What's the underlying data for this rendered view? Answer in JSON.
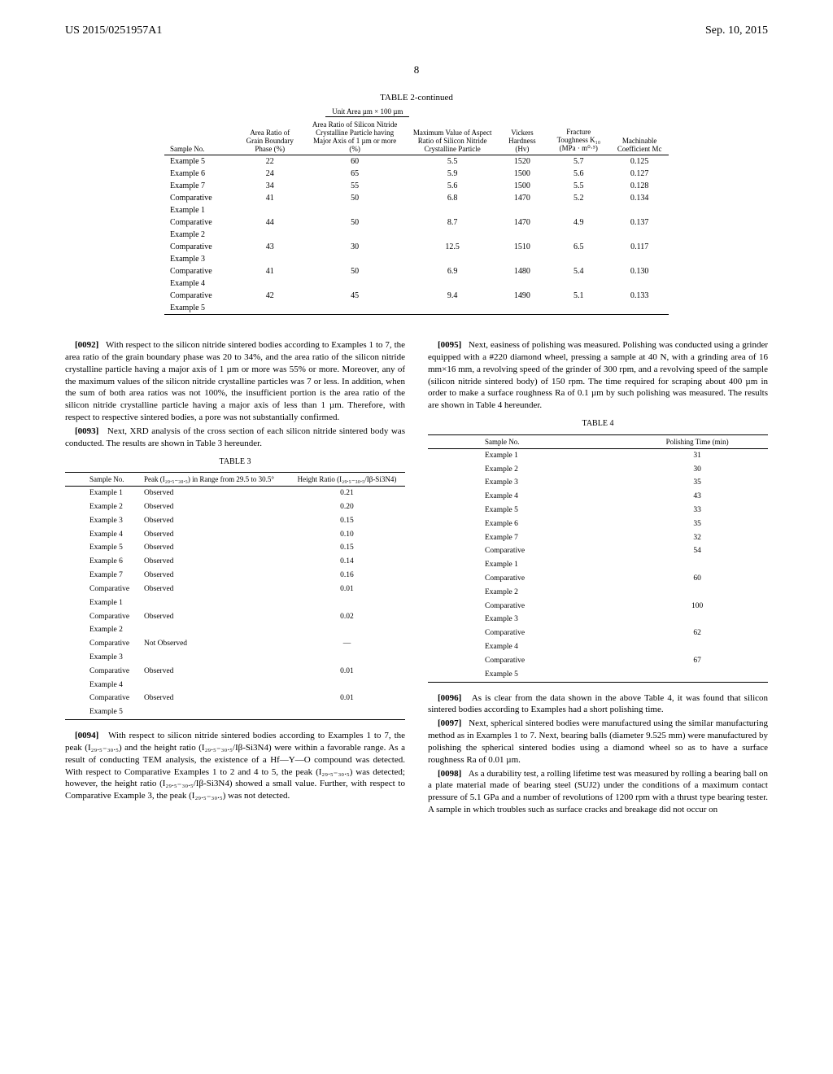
{
  "header": {
    "pub_number": "US 2015/0251957A1",
    "date": "Sep. 10, 2015"
  },
  "page_number": "8",
  "table2": {
    "title": "TABLE 2-continued",
    "group_header": "Unit Area µm × 100 µm",
    "columns": {
      "sample": "Sample No.",
      "area_ratio_grain": "Area Ratio of Grain Boundary Phase (%)",
      "area_ratio_silicon": "Area Ratio of Silicon Nitride Crystalline Particle having Major Axis of 1 µm or more (%)",
      "max_value": "Maximum Value of Aspect Ratio of Silicon Nitride Crystalline Particle",
      "vickers": "Vickers Hardness (Hv)",
      "fracture": "Fracture Toughness K₁₀ (MPa · m⁰·⁵)",
      "machinable": "Machinable Coefficient Mc"
    },
    "rows": [
      {
        "sample": "Example 5",
        "grain": "22",
        "silicon": "60",
        "max": "5.5",
        "vickers": "1520",
        "fracture": "5.7",
        "mc": "0.125"
      },
      {
        "sample": "Example 6",
        "grain": "24",
        "silicon": "65",
        "max": "5.9",
        "vickers": "1500",
        "fracture": "5.6",
        "mc": "0.127"
      },
      {
        "sample": "Example 7",
        "grain": "34",
        "silicon": "55",
        "max": "5.6",
        "vickers": "1500",
        "fracture": "5.5",
        "mc": "0.128"
      },
      {
        "sample": "Comparative Example 1",
        "grain": "41",
        "silicon": "50",
        "max": "6.8",
        "vickers": "1470",
        "fracture": "5.2",
        "mc": "0.134"
      },
      {
        "sample": "Comparative Example 2",
        "grain": "44",
        "silicon": "50",
        "max": "8.7",
        "vickers": "1470",
        "fracture": "4.9",
        "mc": "0.137"
      },
      {
        "sample": "Comparative Example 3",
        "grain": "43",
        "silicon": "30",
        "max": "12.5",
        "vickers": "1510",
        "fracture": "6.5",
        "mc": "0.117"
      },
      {
        "sample": "Comparative Example 4",
        "grain": "41",
        "silicon": "50",
        "max": "6.9",
        "vickers": "1480",
        "fracture": "5.4",
        "mc": "0.130"
      },
      {
        "sample": "Comparative Example 5",
        "grain": "42",
        "silicon": "45",
        "max": "9.4",
        "vickers": "1490",
        "fracture": "5.1",
        "mc": "0.133"
      }
    ]
  },
  "paragraphs": {
    "p92_num": "[0092]",
    "p92": "With respect to the silicon nitride sintered bodies according to Examples 1 to 7, the area ratio of the grain boundary phase was 20 to 34%, and the area ratio of the silicon nitride crystalline particle having a major axis of 1 µm or more was 55% or more. Moreover, any of the maximum values of the silicon nitride crystalline particles was 7 or less. In addition, when the sum of both area ratios was not 100%, the insufficient portion is the area ratio of the silicon nitride crystalline particle having a major axis of less than 1 µm. Therefore, with respect to respective sintered bodies, a pore was not substantially confirmed.",
    "p93_num": "[0093]",
    "p93": "Next, XRD analysis of the cross section of each silicon nitride sintered body was conducted. The results are shown in Table 3 hereunder.",
    "p94_num": "[0094]",
    "p94": "With respect to silicon nitride sintered bodies according to Examples 1 to 7, the peak (I₂₉.₅₋₃₀.₅) and the height ratio (I₂₉.₅₋₃₀.₅/Iβ-Si3N4) were within a favorable range. As a result of conducting TEM analysis, the existence of a Hf—Y—O compound was detected. With respect to Comparative Examples 1 to 2 and 4 to 5, the peak (I₂₉.₅₋₃₀.₅) was detected; however, the height ratio (I₂₉.₅₋₃₀.₅/Iβ-Si3N4) showed a small value. Further, with respect to Comparative Example 3, the peak (I₂₉.₅₋₃₀.₅) was not detected.",
    "p95_num": "[0095]",
    "p95": "Next, easiness of polishing was measured. Polishing was conducted using a grinder equipped with a #220 diamond wheel, pressing a sample at 40 N, with a grinding area of 16 mm×16 mm, a revolving speed of the grinder of 300 rpm, and a revolving speed of the sample (silicon nitride sintered body) of 150 rpm. The time required for scraping about 400 µm in order to make a surface roughness Ra of 0.1 µm by such polishing was measured. The results are shown in Table 4 hereunder.",
    "p96_num": "[0096]",
    "p96": "As is clear from the data shown in the above Table 4, it was found that silicon sintered bodies according to Examples had a short polishing time.",
    "p97_num": "[0097]",
    "p97": "Next, spherical sintered bodies were manufactured using the similar manufacturing method as in Examples 1 to 7. Next, bearing balls (diameter 9.525 mm) were manufactured by polishing the spherical sintered bodies using a diamond wheel so as to have a surface roughness Ra of 0.01 µm.",
    "p98_num": "[0098]",
    "p98": "As a durability test, a rolling lifetime test was measured by rolling a bearing ball on a plate material made of bearing steel (SUJ2) under the conditions of a maximum contact pressure of 5.1 GPa and a number of revolutions of 1200 rpm with a thrust type bearing tester. A sample in which troubles such as surface cracks and breakage did not occur on"
  },
  "table3": {
    "title": "TABLE 3",
    "columns": {
      "sample": "Sample No.",
      "peak": "Peak (I₂₉.₅₋₃₀.₅) in Range from 29.5 to 30.5°",
      "ratio": "Height Ratio (I₂₉.₅₋₃₀.₅/Iβ-Si3N4)"
    },
    "rows": [
      {
        "sample": "Example 1",
        "peak": "Observed",
        "ratio": "0.21"
      },
      {
        "sample": "Example 2",
        "peak": "Observed",
        "ratio": "0.20"
      },
      {
        "sample": "Example 3",
        "peak": "Observed",
        "ratio": "0.15"
      },
      {
        "sample": "Example 4",
        "peak": "Observed",
        "ratio": "0.10"
      },
      {
        "sample": "Example 5",
        "peak": "Observed",
        "ratio": "0.15"
      },
      {
        "sample": "Example 6",
        "peak": "Observed",
        "ratio": "0.14"
      },
      {
        "sample": "Example 7",
        "peak": "Observed",
        "ratio": "0.16"
      },
      {
        "sample": "Comparative Example 1",
        "peak": "Observed",
        "ratio": "0.01"
      },
      {
        "sample": "Comparative Example 2",
        "peak": "Observed",
        "ratio": "0.02"
      },
      {
        "sample": "Comparative Example 3",
        "peak": "Not Observed",
        "ratio": "—"
      },
      {
        "sample": "Comparative Example 4",
        "peak": "Observed",
        "ratio": "0.01"
      },
      {
        "sample": "Comparative Example 5",
        "peak": "Observed",
        "ratio": "0.01"
      }
    ]
  },
  "table4": {
    "title": "TABLE 4",
    "columns": {
      "sample": "Sample No.",
      "time": "Polishing Time (min)"
    },
    "rows": [
      {
        "sample": "Example 1",
        "time": "31"
      },
      {
        "sample": "Example 2",
        "time": "30"
      },
      {
        "sample": "Example 3",
        "time": "35"
      },
      {
        "sample": "Example 4",
        "time": "43"
      },
      {
        "sample": "Example 5",
        "time": "33"
      },
      {
        "sample": "Example 6",
        "time": "35"
      },
      {
        "sample": "Example 7",
        "time": "32"
      },
      {
        "sample": "Comparative Example 1",
        "time": "54"
      },
      {
        "sample": "Comparative Example 2",
        "time": "60"
      },
      {
        "sample": "Comparative Example 3",
        "time": "100"
      },
      {
        "sample": "Comparative Example 4",
        "time": "62"
      },
      {
        "sample": "Comparative Example 5",
        "time": "67"
      }
    ]
  }
}
